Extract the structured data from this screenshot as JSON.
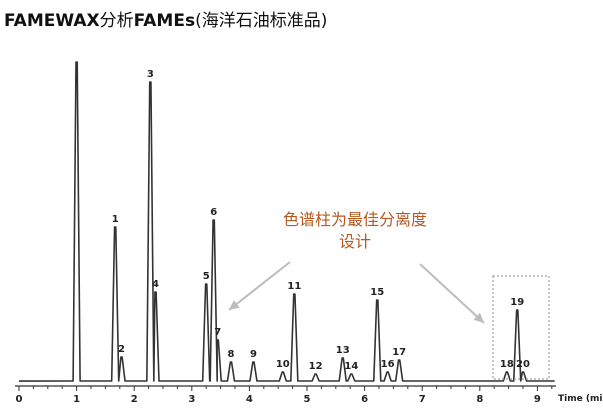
{
  "title": {
    "part1": "FAMEWAX",
    "part2": "分析",
    "part3": "FAMEs",
    "part4": "(海洋石油标准品)"
  },
  "annotation": {
    "line1": "色谱柱为最佳分离度",
    "line2": "设计"
  },
  "chart_data": {
    "type": "line",
    "title": "FAMEWAX分析FAMEs(海洋石油标准品)",
    "xlabel": "Time (min)",
    "ylabel": "",
    "xlim": [
      0,
      9.3
    ],
    "xticks": [
      0,
      1,
      2,
      3,
      4,
      5,
      6,
      7,
      8,
      9
    ],
    "baseline": 6,
    "peaks": [
      {
        "label": "",
        "x": 1.0,
        "height": 320
      },
      {
        "label": "1",
        "x": 1.67,
        "height": 155
      },
      {
        "label": "2",
        "x": 1.78,
        "height": 25
      },
      {
        "label": "3",
        "x": 2.28,
        "height": 300
      },
      {
        "label": "4",
        "x": 2.37,
        "height": 90
      },
      {
        "label": "5",
        "x": 3.25,
        "height": 98
      },
      {
        "label": "6",
        "x": 3.38,
        "height": 162
      },
      {
        "label": "7",
        "x": 3.45,
        "height": 42
      },
      {
        "label": "8",
        "x": 3.68,
        "height": 20
      },
      {
        "label": "9",
        "x": 4.07,
        "height": 20
      },
      {
        "label": "10",
        "x": 4.58,
        "height": 10
      },
      {
        "label": "11",
        "x": 4.78,
        "height": 88
      },
      {
        "label": "12",
        "x": 5.15,
        "height": 8
      },
      {
        "label": "13",
        "x": 5.62,
        "height": 24
      },
      {
        "label": "14",
        "x": 5.77,
        "height": 8
      },
      {
        "label": "15",
        "x": 6.22,
        "height": 82
      },
      {
        "label": "16",
        "x": 6.4,
        "height": 10
      },
      {
        "label": "17",
        "x": 6.6,
        "height": 22
      },
      {
        "label": "18",
        "x": 8.47,
        "height": 10
      },
      {
        "label": "19",
        "x": 8.65,
        "height": 72
      },
      {
        "label": "20",
        "x": 8.75,
        "height": 10
      }
    ]
  },
  "colors": {
    "trace": "#333333",
    "annotation": "#b25a22",
    "arrow": "#bdbdbd",
    "box": "#9aa3a8"
  }
}
